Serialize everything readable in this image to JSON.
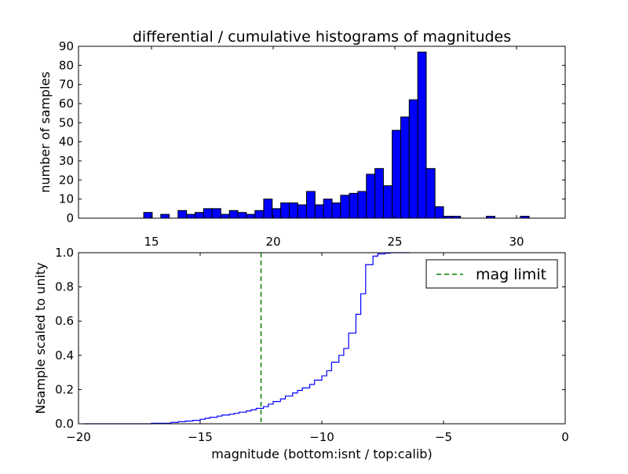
{
  "chart_data": [
    {
      "type": "bar",
      "title": "differential / cumulative histograms of magnitudes",
      "xlabel": "",
      "ylabel": "number of samples",
      "xlim": [
        12,
        32
      ],
      "ylim": [
        0,
        90
      ],
      "x_ticks": [
        15,
        20,
        25,
        30
      ],
      "y_ticks": [
        0,
        10,
        20,
        30,
        40,
        50,
        60,
        70,
        80,
        90
      ],
      "x_tick_position": "top",
      "bar_color": "#0000ff",
      "bins": [
        {
          "start": 14.68,
          "end": 15.03,
          "value": 3
        },
        {
          "start": 15.38,
          "end": 15.73,
          "value": 2
        },
        {
          "start": 16.09,
          "end": 16.44,
          "value": 4
        },
        {
          "start": 16.44,
          "end": 16.79,
          "value": 2
        },
        {
          "start": 16.79,
          "end": 17.14,
          "value": 3
        },
        {
          "start": 17.14,
          "end": 17.49,
          "value": 5
        },
        {
          "start": 17.49,
          "end": 17.85,
          "value": 5
        },
        {
          "start": 17.85,
          "end": 18.2,
          "value": 2
        },
        {
          "start": 18.2,
          "end": 18.55,
          "value": 4
        },
        {
          "start": 18.55,
          "end": 18.9,
          "value": 3
        },
        {
          "start": 18.9,
          "end": 19.25,
          "value": 2
        },
        {
          "start": 19.25,
          "end": 19.61,
          "value": 4
        },
        {
          "start": 19.61,
          "end": 19.96,
          "value": 10
        },
        {
          "start": 19.96,
          "end": 20.31,
          "value": 5
        },
        {
          "start": 20.31,
          "end": 20.66,
          "value": 8
        },
        {
          "start": 20.66,
          "end": 21.01,
          "value": 8
        },
        {
          "start": 21.01,
          "end": 21.37,
          "value": 7
        },
        {
          "start": 21.37,
          "end": 21.72,
          "value": 14
        },
        {
          "start": 21.72,
          "end": 22.07,
          "value": 7
        },
        {
          "start": 22.07,
          "end": 22.42,
          "value": 10
        },
        {
          "start": 22.42,
          "end": 22.77,
          "value": 8
        },
        {
          "start": 22.77,
          "end": 23.13,
          "value": 12
        },
        {
          "start": 23.13,
          "end": 23.48,
          "value": 13
        },
        {
          "start": 23.48,
          "end": 23.83,
          "value": 14
        },
        {
          "start": 23.83,
          "end": 24.18,
          "value": 23
        },
        {
          "start": 24.18,
          "end": 24.53,
          "value": 26
        },
        {
          "start": 24.53,
          "end": 24.89,
          "value": 17
        },
        {
          "start": 24.89,
          "end": 25.24,
          "value": 46
        },
        {
          "start": 25.24,
          "end": 25.59,
          "value": 53
        },
        {
          "start": 25.59,
          "end": 25.94,
          "value": 62
        },
        {
          "start": 25.94,
          "end": 26.29,
          "value": 87
        },
        {
          "start": 26.29,
          "end": 26.65,
          "value": 26
        },
        {
          "start": 26.65,
          "end": 27.0,
          "value": 6
        },
        {
          "start": 27.0,
          "end": 27.35,
          "value": 1
        },
        {
          "start": 27.35,
          "end": 27.7,
          "value": 1
        },
        {
          "start": 28.76,
          "end": 29.11,
          "value": 1
        },
        {
          "start": 30.16,
          "end": 30.52,
          "value": 1
        }
      ]
    },
    {
      "type": "line",
      "subtype": "cumulative-step",
      "xlabel": "magnitude (bottom:isnt / top:calib)",
      "ylabel": "Nsample scaled to unity",
      "xlim": [
        -20,
        0
      ],
      "ylim": [
        0,
        1
      ],
      "x_ticks": [
        -20,
        -15,
        -10,
        -5,
        0
      ],
      "x_tick_labels": [
        "−20",
        "−15",
        "−10",
        "−5",
        "0"
      ],
      "y_ticks": [
        0,
        0.2,
        0.4,
        0.6,
        0.8,
        1.0
      ],
      "y_tick_labels": [
        "0.0",
        "0.2",
        "0.4",
        "0.6",
        "0.8",
        "1.0"
      ],
      "line_color": "#0000ff",
      "x": [
        -19.8,
        -17.0,
        -16.2,
        -15.9,
        -15.6,
        -15.3,
        -15.0,
        -14.8,
        -14.6,
        -14.3,
        -14.1,
        -13.8,
        -13.6,
        -13.4,
        -13.1,
        -12.9,
        -12.7,
        -12.4,
        -12.2,
        -12.0,
        -11.7,
        -11.5,
        -11.2,
        -11.0,
        -10.8,
        -10.5,
        -10.3,
        -10.0,
        -9.8,
        -9.6,
        -9.3,
        -9.1,
        -8.9,
        -8.6,
        -8.4,
        -8.2,
        -7.9,
        -7.7,
        -7.4,
        -7.2,
        -6.4
      ],
      "y": [
        0.0,
        0.003,
        0.008,
        0.012,
        0.016,
        0.02,
        0.026,
        0.032,
        0.038,
        0.045,
        0.051,
        0.056,
        0.061,
        0.068,
        0.075,
        0.082,
        0.09,
        0.1,
        0.115,
        0.13,
        0.145,
        0.162,
        0.18,
        0.195,
        0.21,
        0.23,
        0.255,
        0.28,
        0.31,
        0.36,
        0.4,
        0.44,
        0.53,
        0.64,
        0.76,
        0.93,
        0.98,
        0.993,
        0.997,
        1.0,
        1.0
      ],
      "reference_line": {
        "name": "mag limit",
        "x": -12.5,
        "color": "#008000",
        "style": "dashed"
      },
      "legend": {
        "entries": [
          "mag limit"
        ],
        "position": "top-right"
      }
    }
  ]
}
